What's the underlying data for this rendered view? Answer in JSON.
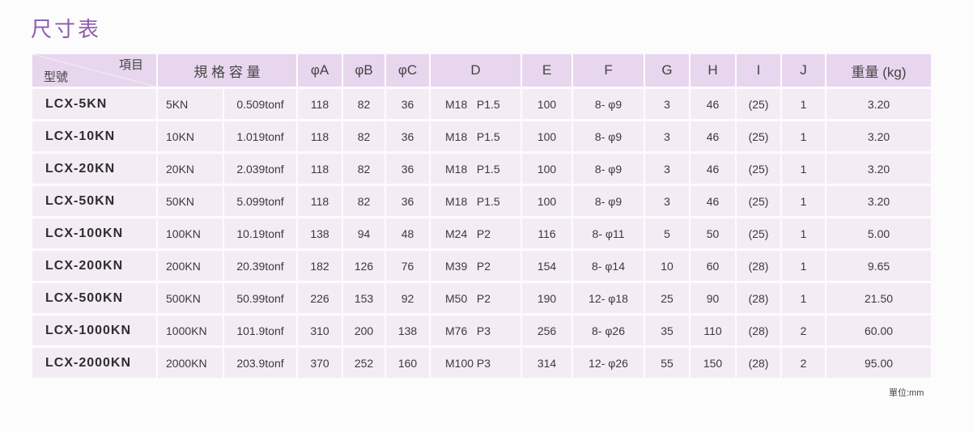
{
  "title": "尺寸表",
  "header": {
    "corner_top": "項目",
    "corner_bottom": "型號",
    "capacity": "規 格 容 量",
    "cols": [
      "φA",
      "φB",
      "φC",
      "D",
      "E",
      "F",
      "G",
      "H",
      "I",
      "J",
      "重量 (kg)"
    ]
  },
  "rows": [
    {
      "model": "LCX-5KN",
      "kn": "5KN",
      "tonf": "0.509tonf",
      "A": "118",
      "B": "82",
      "C": "36",
      "D": "M18   P1.5",
      "E": "100",
      "F": "8- φ9",
      "G": "3",
      "H": "46",
      "I": "(25)",
      "J": "1",
      "weight": "3.20"
    },
    {
      "model": "LCX-10KN",
      "kn": "10KN",
      "tonf": "1.019tonf",
      "A": "118",
      "B": "82",
      "C": "36",
      "D": "M18   P1.5",
      "E": "100",
      "F": "8- φ9",
      "G": "3",
      "H": "46",
      "I": "(25)",
      "J": "1",
      "weight": "3.20"
    },
    {
      "model": "LCX-20KN",
      "kn": "20KN",
      "tonf": "2.039tonf",
      "A": "118",
      "B": "82",
      "C": "36",
      "D": "M18   P1.5",
      "E": "100",
      "F": "8- φ9",
      "G": "3",
      "H": "46",
      "I": "(25)",
      "J": "1",
      "weight": "3.20"
    },
    {
      "model": "LCX-50KN",
      "kn": "50KN",
      "tonf": "5.099tonf",
      "A": "118",
      "B": "82",
      "C": "36",
      "D": "M18   P1.5",
      "E": "100",
      "F": "8- φ9",
      "G": "3",
      "H": "46",
      "I": "(25)",
      "J": "1",
      "weight": "3.20"
    },
    {
      "model": "LCX-100KN",
      "kn": "100KN",
      "tonf": "10.19tonf",
      "A": "138",
      "B": "94",
      "C": "48",
      "D": "M24   P2",
      "E": "116",
      "F": "8- φ11",
      "G": "5",
      "H": "50",
      "I": "(25)",
      "J": "1",
      "weight": "5.00"
    },
    {
      "model": "LCX-200KN",
      "kn": "200KN",
      "tonf": "20.39tonf",
      "A": "182",
      "B": "126",
      "C": "76",
      "D": "M39   P2",
      "E": "154",
      "F": "8- φ14",
      "G": "10",
      "H": "60",
      "I": "(28)",
      "J": "1",
      "weight": "9.65"
    },
    {
      "model": "LCX-500KN",
      "kn": "500KN",
      "tonf": "50.99tonf",
      "A": "226",
      "B": "153",
      "C": "92",
      "D": "M50   P2",
      "E": "190",
      "F": "12- φ18",
      "G": "25",
      "H": "90",
      "I": "(28)",
      "J": "1",
      "weight": "21.50"
    },
    {
      "model": "LCX-1000KN",
      "kn": "1000KN",
      "tonf": "101.9tonf",
      "A": "310",
      "B": "200",
      "C": "138",
      "D": "M76   P3",
      "E": "256",
      "F": "8- φ26",
      "G": "35",
      "H": "110",
      "I": "(28)",
      "J": "2",
      "weight": "60.00"
    },
    {
      "model": "LCX-2000KN",
      "kn": "2000KN",
      "tonf": "203.9tonf",
      "A": "370",
      "B": "252",
      "C": "160",
      "D": "M100 P3",
      "E": "314",
      "F": "12- φ26",
      "G": "55",
      "H": "150",
      "I": "(28)",
      "J": "2",
      "weight": "95.00"
    }
  ],
  "unit": "單位:mm"
}
